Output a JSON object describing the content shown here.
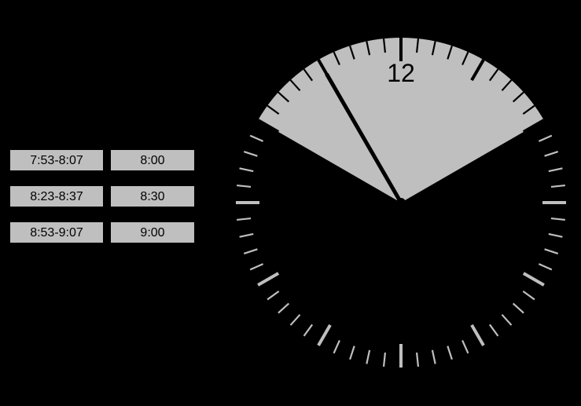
{
  "background_color": "#000000",
  "table": {
    "cell_bg": "#bfbfbf",
    "cell_border": "#000000",
    "text_color": "#000000",
    "font_size": 16,
    "rows": [
      {
        "range": "7:53-8:07",
        "time": "8:00"
      },
      {
        "range": "8:23-8:37",
        "time": "8:30"
      },
      {
        "range": "8:53-9:07",
        "time": "9:00"
      }
    ]
  },
  "clock": {
    "type": "analog-clock",
    "face_color": "#000000",
    "wedge_color": "#bfbfbf",
    "tick_color_light": "#bfbfbf",
    "tick_color_dark": "#000000",
    "hand_color": "#000000",
    "numeral": "12",
    "numeral_color": "#000000",
    "numeral_fontsize": 32,
    "wedge_start_min": 50,
    "wedge_end_min": 10,
    "hand_minute": 55,
    "radius_outer": 210,
    "radius_inner_minor": 192,
    "radius_inner_major": 180,
    "radius_numeral": 165
  }
}
